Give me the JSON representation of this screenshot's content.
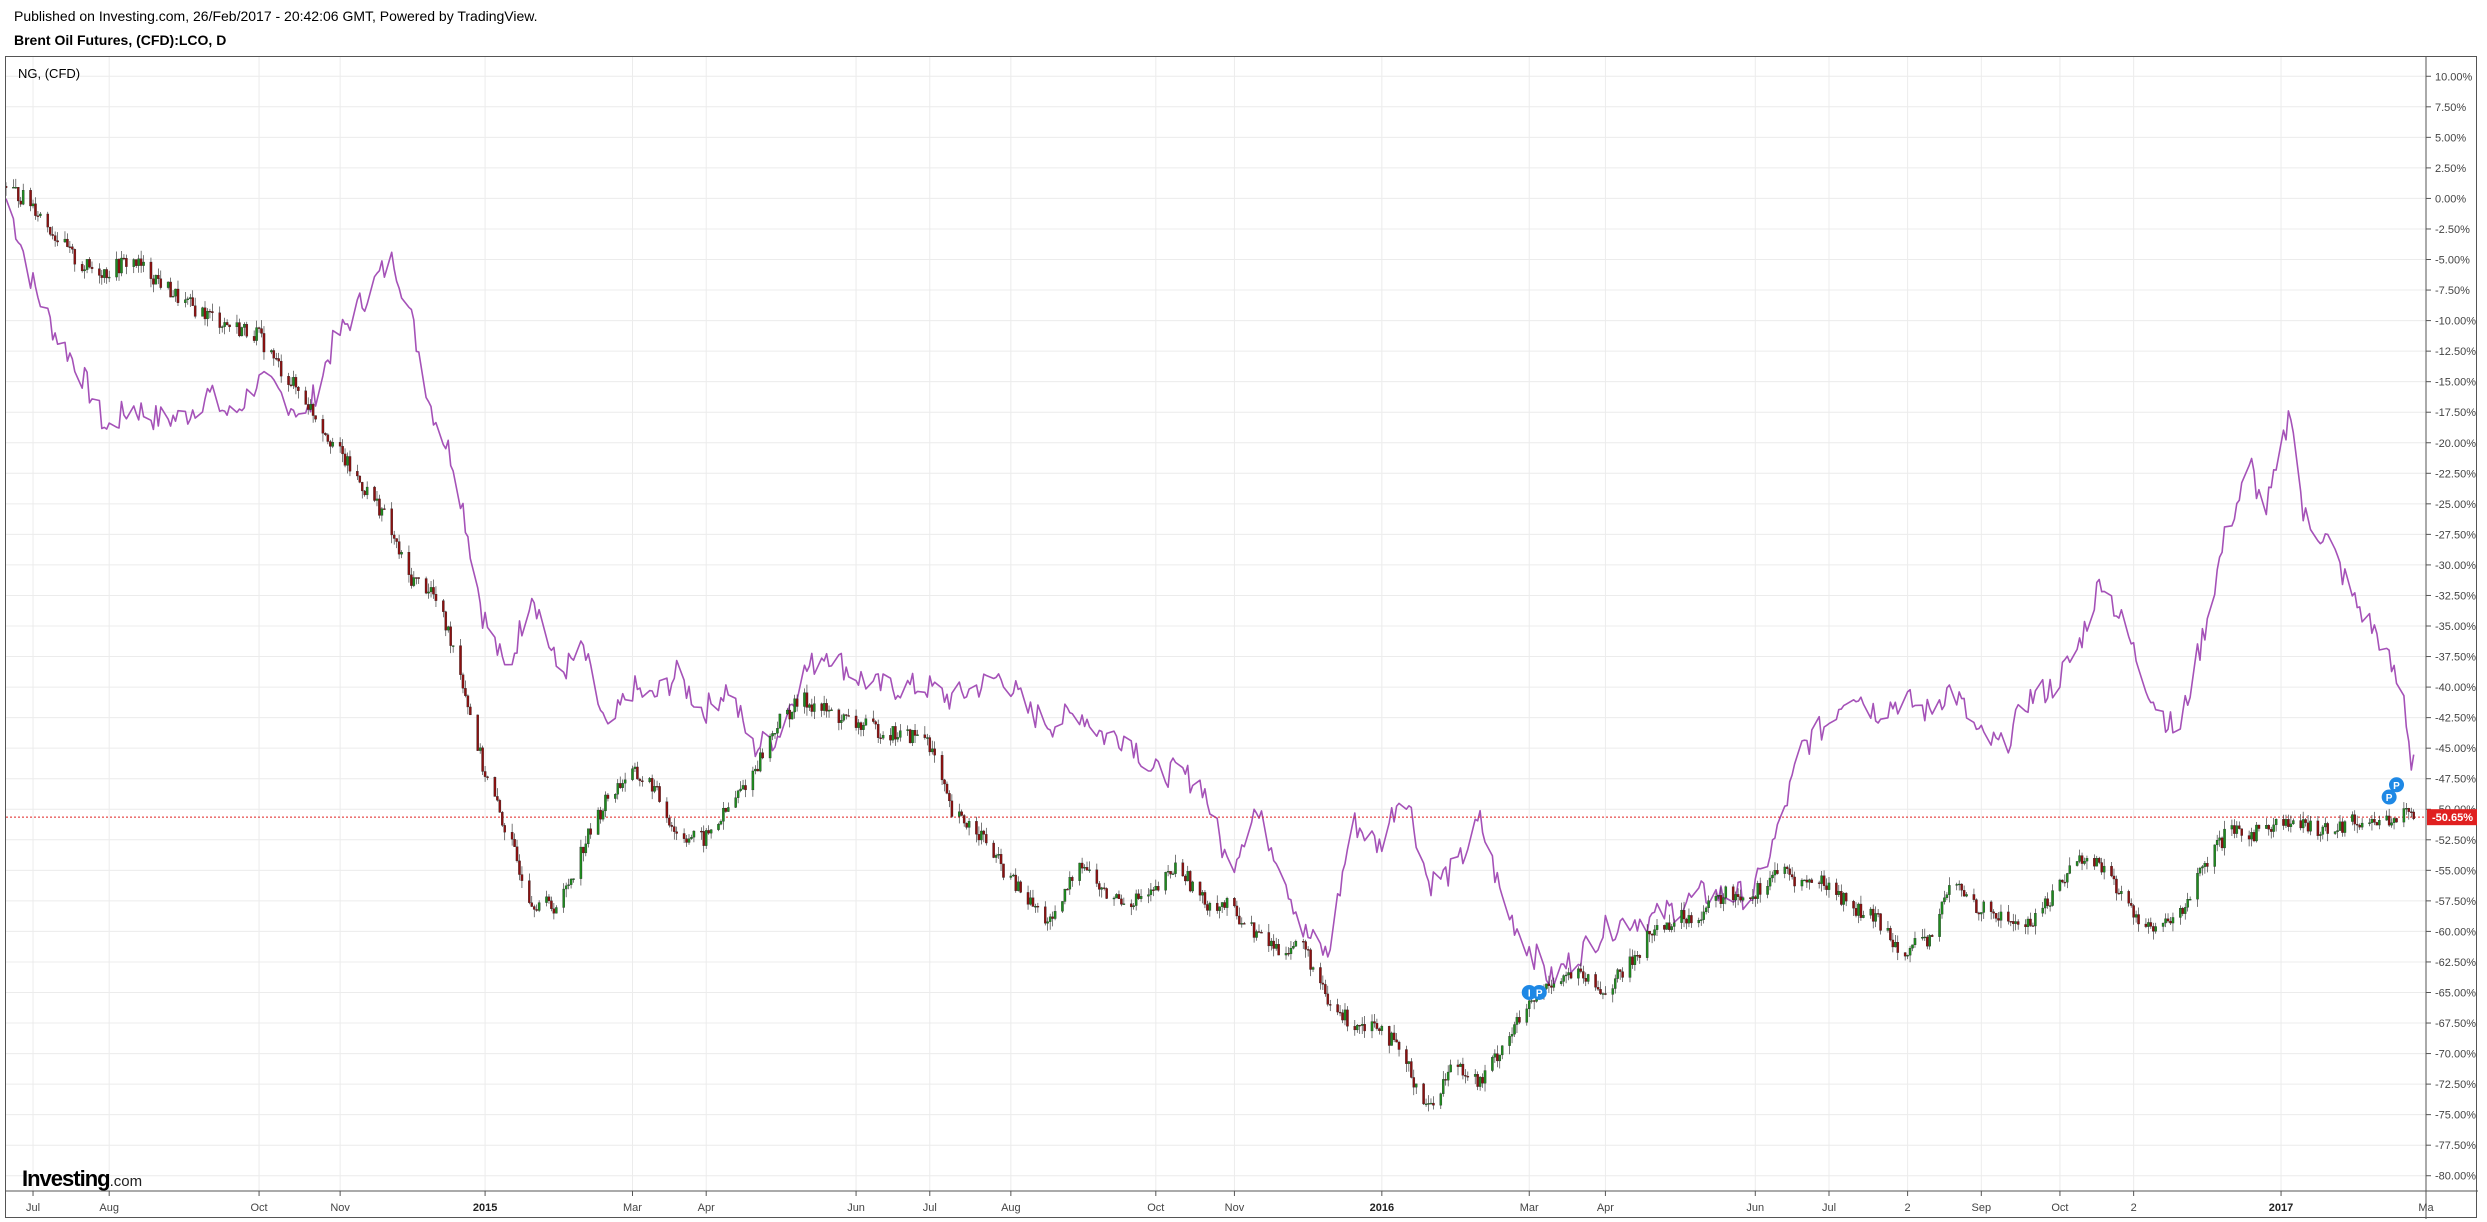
{
  "header": {
    "published": "Published on Investing.com, 26/Feb/2017 - 20:42:06 GMT, Powered by TradingView.",
    "symbol": "Brent Oil Futures, (CFD):LCO, D"
  },
  "overlay_label": "NG,  (CFD)",
  "logo": {
    "main": "Investing",
    "suffix": ".com"
  },
  "colors": {
    "candle_up": "#1f8a1f",
    "candle_down": "#8b1111",
    "overlay_line": "#a552b8",
    "price_line": "#e02020",
    "badge": "#1e88e5",
    "grid": "#ececec"
  },
  "chart_data": {
    "type": "line",
    "title": "Brent Oil Futures, (CFD):LCO, D",
    "y_unit": "%",
    "ylim": [
      -81.25,
      11.25
    ],
    "y_ticks": [
      "10.00%",
      "7.50%",
      "5.00%",
      "2.50%",
      "0.00%",
      "-2.50%",
      "-5.00%",
      "-7.50%",
      "-10.00%",
      "-12.50%",
      "-15.00%",
      "-17.50%",
      "-20.00%",
      "-22.50%",
      "-25.00%",
      "-27.50%",
      "-30.00%",
      "-32.50%",
      "-35.00%",
      "-37.50%",
      "-40.00%",
      "-42.50%",
      "-45.00%",
      "-47.50%",
      "-50.00%",
      "-52.50%",
      "-55.00%",
      "-57.50%",
      "-60.00%",
      "-62.50%",
      "-65.00%",
      "-67.50%",
      "-70.00%",
      "-72.50%",
      "-75.00%",
      "-77.50%",
      "-80.00%"
    ],
    "x_start": "2014-06-20",
    "x_end": "2017-03-01",
    "x_ticks": [
      {
        "label": "Jul",
        "date": "2014-07-01",
        "bold": false
      },
      {
        "label": "Aug",
        "date": "2014-08-01",
        "bold": false
      },
      {
        "label": "Oct",
        "date": "2014-10-01",
        "bold": false
      },
      {
        "label": "Nov",
        "date": "2014-11-03",
        "bold": false
      },
      {
        "label": "2015",
        "date": "2015-01-01",
        "bold": true
      },
      {
        "label": "Mar",
        "date": "2015-03-02",
        "bold": false
      },
      {
        "label": "Apr",
        "date": "2015-04-01",
        "bold": false
      },
      {
        "label": "Jun",
        "date": "2015-06-01",
        "bold": false
      },
      {
        "label": "Jul",
        "date": "2015-07-01",
        "bold": false
      },
      {
        "label": "Aug",
        "date": "2015-08-03",
        "bold": false
      },
      {
        "label": "Oct",
        "date": "2015-10-01",
        "bold": false
      },
      {
        "label": "Nov",
        "date": "2015-11-02",
        "bold": false
      },
      {
        "label": "2016",
        "date": "2016-01-01",
        "bold": true
      },
      {
        "label": "Mar",
        "date": "2016-03-01",
        "bold": false
      },
      {
        "label": "Apr",
        "date": "2016-04-01",
        "bold": false
      },
      {
        "label": "Jun",
        "date": "2016-06-01",
        "bold": false
      },
      {
        "label": "Jul",
        "date": "2016-07-01",
        "bold": false
      },
      {
        "label": "2",
        "date": "2016-08-02",
        "bold": false
      },
      {
        "label": "Sep",
        "date": "2016-09-01",
        "bold": false
      },
      {
        "label": "Oct",
        "date": "2016-10-03",
        "bold": false
      },
      {
        "label": "2",
        "date": "2016-11-02",
        "bold": false
      },
      {
        "label": "2017",
        "date": "2017-01-01",
        "bold": true
      },
      {
        "label": "Ma",
        "date": "2017-03-01",
        "bold": false
      }
    ],
    "last_value_label": "-50.65%",
    "last_value": -50.65,
    "series": [
      {
        "name": "Brent Oil Futures, (CFD):LCO, D",
        "style": "candlestick",
        "points": [
          [
            "2014-06-20",
            1
          ],
          [
            "2014-07-01",
            -0.5
          ],
          [
            "2014-07-10",
            -3
          ],
          [
            "2014-07-20",
            -5.5
          ],
          [
            "2014-07-31",
            -6
          ],
          [
            "2014-08-10",
            -5
          ],
          [
            "2014-08-20",
            -6.5
          ],
          [
            "2014-08-31",
            -8.5
          ],
          [
            "2014-09-10",
            -9.5
          ],
          [
            "2014-09-20",
            -10.5
          ],
          [
            "2014-09-30",
            -11
          ],
          [
            "2014-10-10",
            -14
          ],
          [
            "2014-10-20",
            -16.5
          ],
          [
            "2014-10-31",
            -20
          ],
          [
            "2014-11-10",
            -23
          ],
          [
            "2014-11-20",
            -25.5
          ],
          [
            "2014-12-01",
            -31
          ],
          [
            "2014-12-10",
            -32
          ],
          [
            "2014-12-20",
            -37
          ],
          [
            "2014-12-31",
            -46.5
          ],
          [
            "2015-01-10",
            -52
          ],
          [
            "2015-01-20",
            -57.5
          ],
          [
            "2015-01-31",
            -58
          ],
          [
            "2015-02-10",
            -53
          ],
          [
            "2015-02-20",
            -49
          ],
          [
            "2015-03-01",
            -47
          ],
          [
            "2015-03-10",
            -48
          ],
          [
            "2015-03-20",
            -52
          ],
          [
            "2015-03-31",
            -52.5
          ],
          [
            "2015-04-10",
            -50
          ],
          [
            "2015-04-20",
            -47
          ],
          [
            "2015-04-30",
            -43
          ],
          [
            "2015-05-10",
            -41
          ],
          [
            "2015-05-20",
            -42
          ],
          [
            "2015-05-31",
            -43
          ],
          [
            "2015-06-10",
            -43.5
          ],
          [
            "2015-06-20",
            -44
          ],
          [
            "2015-06-30",
            -44
          ],
          [
            "2015-07-10",
            -50.5
          ],
          [
            "2015-07-20",
            -51.5
          ],
          [
            "2015-07-31",
            -55
          ],
          [
            "2015-08-10",
            -57.5
          ],
          [
            "2015-08-20",
            -59.5
          ],
          [
            "2015-08-31",
            -54
          ],
          [
            "2015-09-10",
            -57
          ],
          [
            "2015-09-20",
            -57.5
          ],
          [
            "2015-09-30",
            -57
          ],
          [
            "2015-10-10",
            -54.5
          ],
          [
            "2015-10-20",
            -57.5
          ],
          [
            "2015-10-31",
            -58
          ],
          [
            "2015-11-10",
            -60
          ],
          [
            "2015-11-20",
            -61.5
          ],
          [
            "2015-11-30",
            -61
          ],
          [
            "2015-12-10",
            -66
          ],
          [
            "2015-12-20",
            -67.5
          ],
          [
            "2015-12-31",
            -67.5
          ],
          [
            "2016-01-10",
            -70.5
          ],
          [
            "2016-01-20",
            -74.5
          ],
          [
            "2016-01-31",
            -70.5
          ],
          [
            "2016-02-10",
            -72.5
          ],
          [
            "2016-02-20",
            -69
          ],
          [
            "2016-02-29",
            -66.5
          ],
          [
            "2016-03-10",
            -64
          ],
          [
            "2016-03-20",
            -63.5
          ],
          [
            "2016-03-31",
            -65
          ],
          [
            "2016-04-10",
            -63
          ],
          [
            "2016-04-20",
            -60
          ],
          [
            "2016-04-30",
            -59
          ],
          [
            "2016-05-10",
            -58.5
          ],
          [
            "2016-05-20",
            -57
          ],
          [
            "2016-05-31",
            -57
          ],
          [
            "2016-06-10",
            -55
          ],
          [
            "2016-06-20",
            -56
          ],
          [
            "2016-06-30",
            -56
          ],
          [
            "2016-07-10",
            -58
          ],
          [
            "2016-07-20",
            -59
          ],
          [
            "2016-07-31",
            -61.5
          ],
          [
            "2016-08-10",
            -61
          ],
          [
            "2016-08-20",
            -56
          ],
          [
            "2016-08-31",
            -58
          ],
          [
            "2016-09-10",
            -59
          ],
          [
            "2016-09-20",
            -59.5
          ],
          [
            "2016-09-30",
            -57
          ],
          [
            "2016-10-10",
            -54
          ],
          [
            "2016-10-20",
            -54.5
          ],
          [
            "2016-10-31",
            -58
          ],
          [
            "2016-11-10",
            -60
          ],
          [
            "2016-11-20",
            -59
          ],
          [
            "2016-11-30",
            -55
          ],
          [
            "2016-12-10",
            -52
          ],
          [
            "2016-12-20",
            -52
          ],
          [
            "2016-12-31",
            -51
          ],
          [
            "2017-01-10",
            -51.5
          ],
          [
            "2017-01-20",
            -51.5
          ],
          [
            "2017-01-31",
            -51
          ],
          [
            "2017-02-10",
            -51
          ],
          [
            "2017-02-20",
            -50.5
          ],
          [
            "2017-02-24",
            -50.65
          ]
        ]
      },
      {
        "name": "NG,  (CFD)",
        "style": "line",
        "points": [
          [
            "2014-06-20",
            0
          ],
          [
            "2014-06-25",
            -3
          ],
          [
            "2014-07-01",
            -7
          ],
          [
            "2014-07-10",
            -11
          ],
          [
            "2014-07-20",
            -14
          ],
          [
            "2014-07-31",
            -19
          ],
          [
            "2014-08-10",
            -17
          ],
          [
            "2014-08-20",
            -18
          ],
          [
            "2014-08-31",
            -18
          ],
          [
            "2014-09-10",
            -16
          ],
          [
            "2014-09-20",
            -18
          ],
          [
            "2014-09-30",
            -15
          ],
          [
            "2014-10-10",
            -16
          ],
          [
            "2014-10-20",
            -18
          ],
          [
            "2014-10-31",
            -12
          ],
          [
            "2014-11-10",
            -9
          ],
          [
            "2014-11-20",
            -6
          ],
          [
            "2014-11-25",
            -5
          ],
          [
            "2014-12-01",
            -9
          ],
          [
            "2014-12-10",
            -17
          ],
          [
            "2014-12-20",
            -22
          ],
          [
            "2014-12-31",
            -34
          ],
          [
            "2015-01-10",
            -39
          ],
          [
            "2015-01-20",
            -32
          ],
          [
            "2015-01-31",
            -39
          ],
          [
            "2015-02-10",
            -37
          ],
          [
            "2015-02-20",
            -44
          ],
          [
            "2015-03-01",
            -40
          ],
          [
            "2015-03-10",
            -41
          ],
          [
            "2015-03-20",
            -39
          ],
          [
            "2015-03-31",
            -42
          ],
          [
            "2015-04-10",
            -40
          ],
          [
            "2015-04-20",
            -45
          ],
          [
            "2015-04-30",
            -44
          ],
          [
            "2015-05-10",
            -39
          ],
          [
            "2015-05-20",
            -37
          ],
          [
            "2015-05-31",
            -39
          ],
          [
            "2015-06-10",
            -40
          ],
          [
            "2015-06-20",
            -40
          ],
          [
            "2015-06-30",
            -40
          ],
          [
            "2015-07-10",
            -41
          ],
          [
            "2015-07-20",
            -40
          ],
          [
            "2015-07-31",
            -39
          ],
          [
            "2015-08-10",
            -42
          ],
          [
            "2015-08-20",
            -43
          ],
          [
            "2015-08-31",
            -42
          ],
          [
            "2015-09-10",
            -44
          ],
          [
            "2015-09-20",
            -44
          ],
          [
            "2015-09-30",
            -47
          ],
          [
            "2015-10-10",
            -47
          ],
          [
            "2015-10-20",
            -48
          ],
          [
            "2015-10-31",
            -55
          ],
          [
            "2015-11-10",
            -50
          ],
          [
            "2015-11-20",
            -54
          ],
          [
            "2015-11-30",
            -60
          ],
          [
            "2015-12-10",
            -62
          ],
          [
            "2015-12-20",
            -51
          ],
          [
            "2015-12-31",
            -53
          ],
          [
            "2016-01-10",
            -48
          ],
          [
            "2016-01-20",
            -56
          ],
          [
            "2016-01-31",
            -55
          ],
          [
            "2016-02-10",
            -51
          ],
          [
            "2016-02-20",
            -58
          ],
          [
            "2016-02-29",
            -61
          ],
          [
            "2016-03-10",
            -64
          ],
          [
            "2016-03-20",
            -62
          ],
          [
            "2016-03-31",
            -60
          ],
          [
            "2016-04-10",
            -59
          ],
          [
            "2016-04-20",
            -59
          ],
          [
            "2016-04-30",
            -58
          ],
          [
            "2016-05-10",
            -57
          ],
          [
            "2016-05-20",
            -57
          ],
          [
            "2016-05-31",
            -57
          ],
          [
            "2016-06-10",
            -52
          ],
          [
            "2016-06-20",
            -45
          ],
          [
            "2016-06-30",
            -43
          ],
          [
            "2016-07-10",
            -40
          ],
          [
            "2016-07-20",
            -42
          ],
          [
            "2016-07-31",
            -41
          ],
          [
            "2016-08-10",
            -42
          ],
          [
            "2016-08-20",
            -40
          ],
          [
            "2016-08-31",
            -44
          ],
          [
            "2016-09-10",
            -45
          ],
          [
            "2016-09-20",
            -41
          ],
          [
            "2016-09-30",
            -40
          ],
          [
            "2016-10-10",
            -37
          ],
          [
            "2016-10-20",
            -31
          ],
          [
            "2016-10-31",
            -36
          ],
          [
            "2016-11-10",
            -41
          ],
          [
            "2016-11-20",
            -44
          ],
          [
            "2016-11-30",
            -36
          ],
          [
            "2016-12-10",
            -27
          ],
          [
            "2016-12-20",
            -22
          ],
          [
            "2016-12-25",
            -26
          ],
          [
            "2016-12-31",
            -22
          ],
          [
            "2017-01-05",
            -17
          ],
          [
            "2017-01-10",
            -26
          ],
          [
            "2017-01-20",
            -28
          ],
          [
            "2017-01-31",
            -33
          ],
          [
            "2017-02-10",
            -36
          ],
          [
            "2017-02-20",
            -41
          ],
          [
            "2017-02-23",
            -46
          ],
          [
            "2017-02-26",
            -44.5
          ]
        ]
      }
    ],
    "markers": [
      {
        "date": "2016-03-01",
        "value": -65,
        "labels": [
          "I",
          "P"
        ]
      },
      {
        "date": "2017-02-14",
        "value": -49,
        "labels": [
          "P"
        ]
      },
      {
        "date": "2017-02-17",
        "value": -48,
        "labels": [
          "P"
        ]
      }
    ]
  }
}
